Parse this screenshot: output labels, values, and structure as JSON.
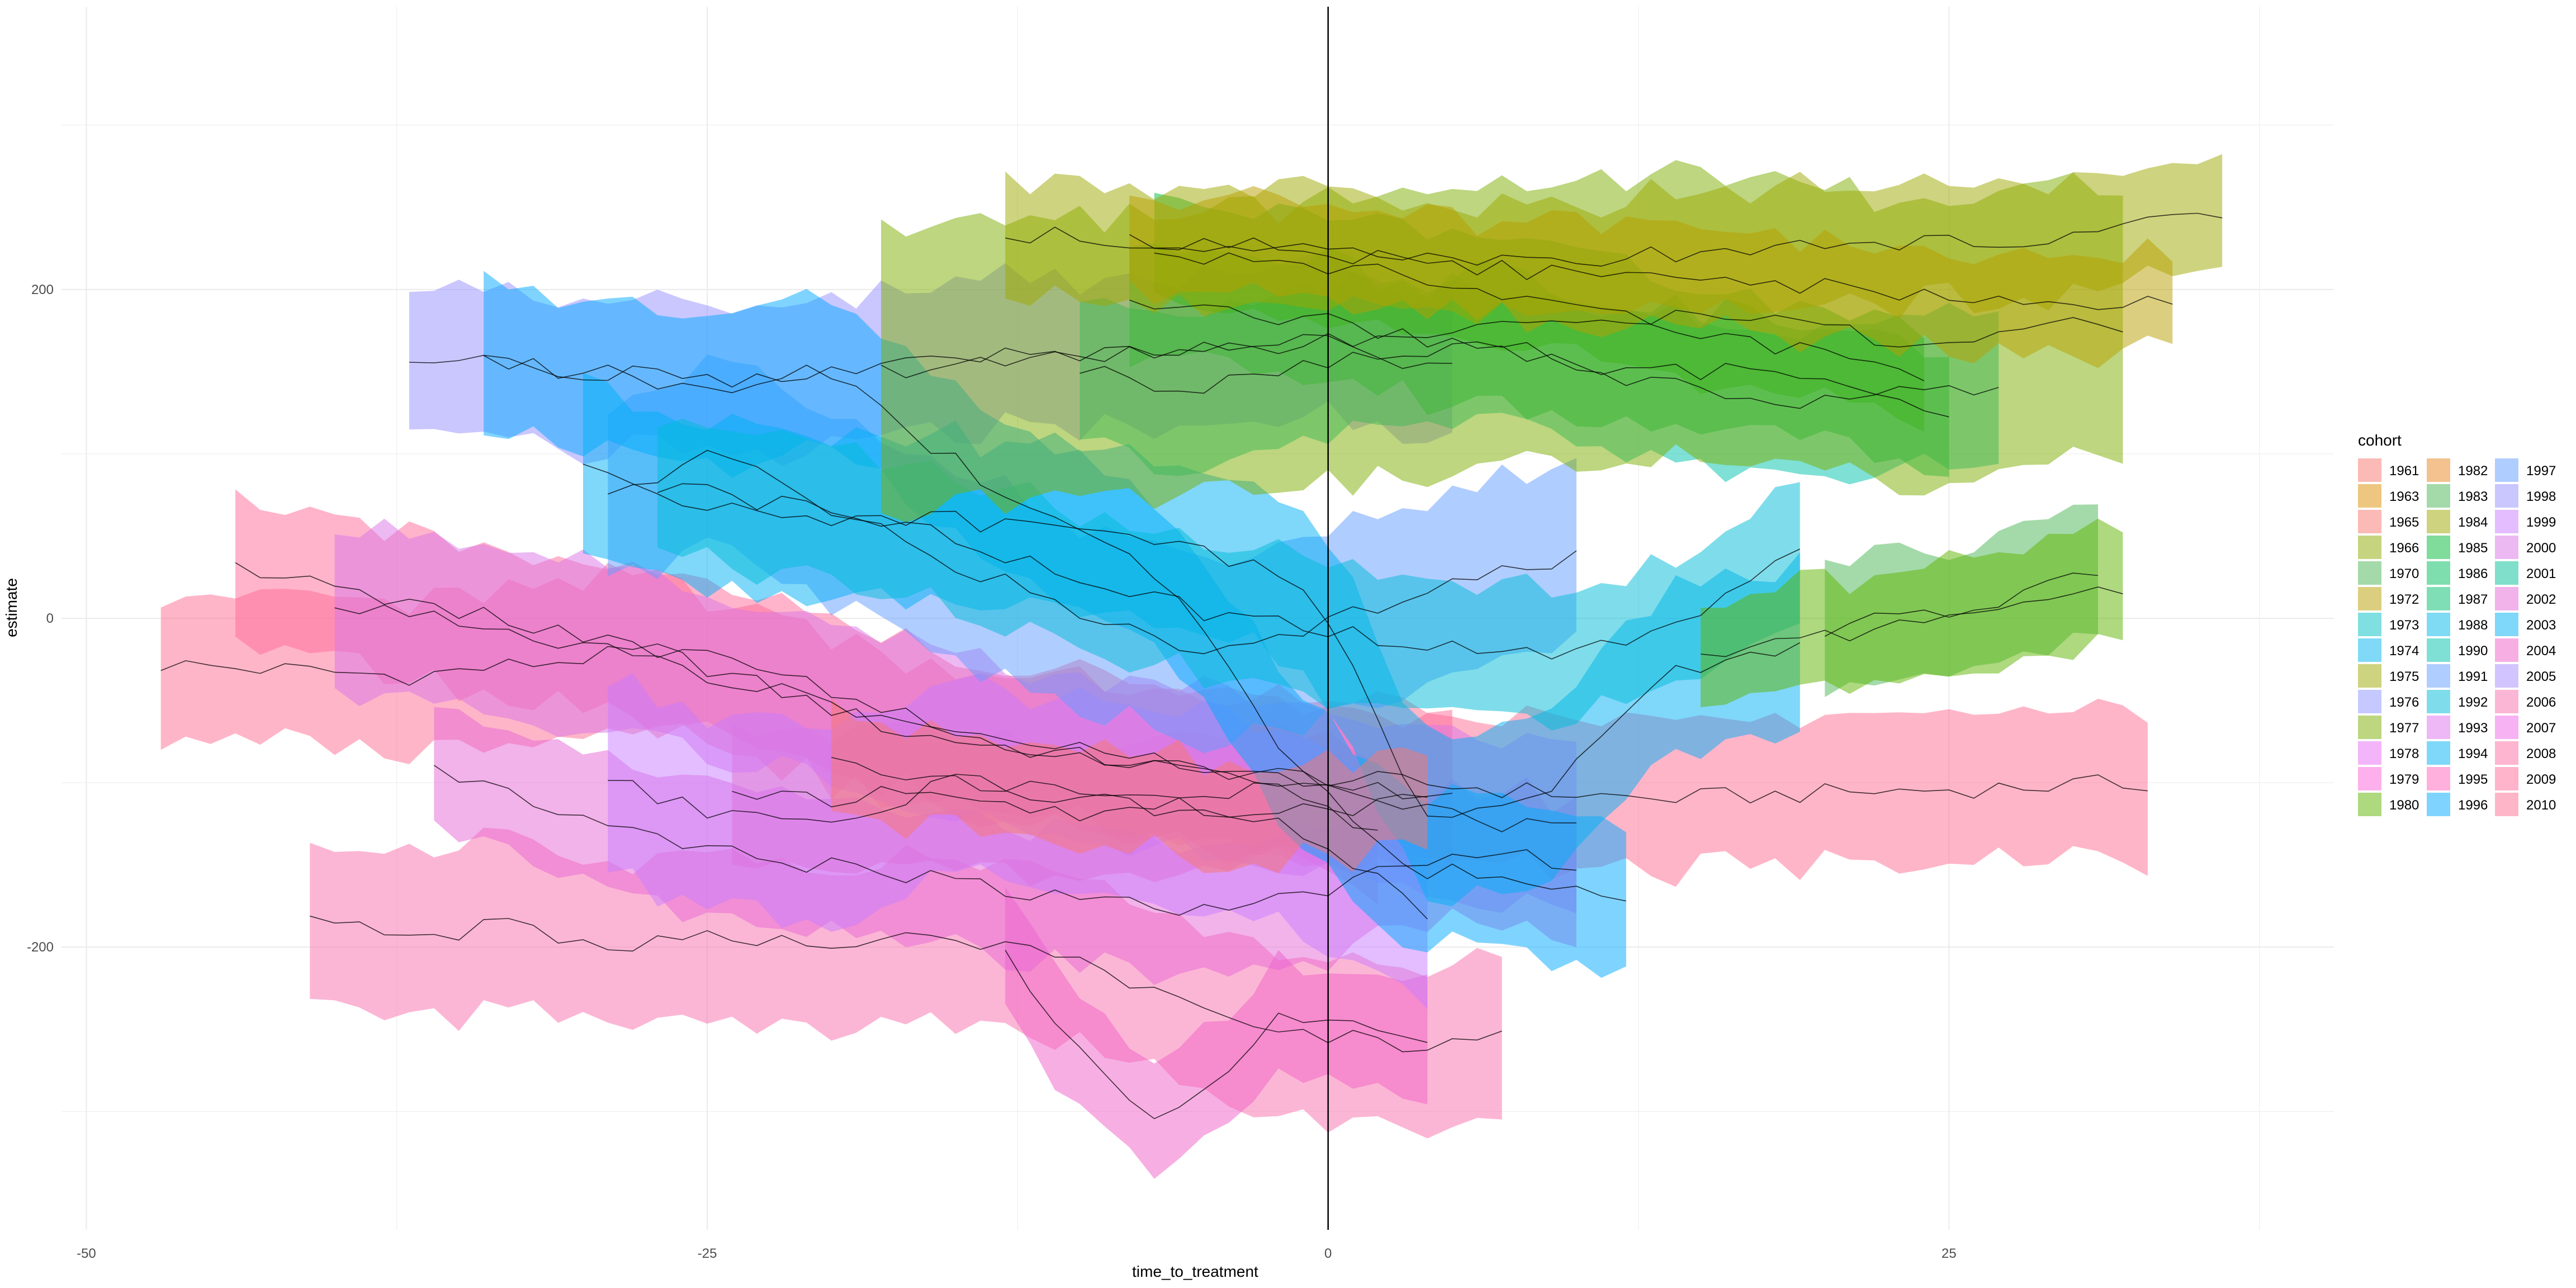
{
  "chart_data": {
    "type": "area",
    "title": "",
    "xlabel": "time_to_treatment",
    "ylabel": "estimate",
    "xlim": [
      -51,
      40.5
    ],
    "ylim": [
      -372,
      372
    ],
    "x_ticks": [
      -50,
      -25,
      0,
      25
    ],
    "y_ticks": [
      -200,
      0,
      200
    ],
    "x_tick_labels": [
      "-50",
      "-25",
      "0",
      "25"
    ],
    "y_tick_labels": [
      "-200",
      "0",
      "200"
    ],
    "reference_line_x": 0,
    "grid": true,
    "ribbon_opacity": 0.5,
    "legend": {
      "title": "cohort",
      "placement": "right",
      "columns": [
        [
          "1961",
          "1963",
          "1965",
          "1966",
          "1970",
          "1972",
          "1973",
          "1974",
          "1975",
          "1976",
          "1977",
          "1978",
          "1979",
          "1980"
        ],
        [
          "1982",
          "1983",
          "1984",
          "1985",
          "1986",
          "1987",
          "1988",
          "1990",
          "1991",
          "1992",
          "1993",
          "1994",
          "1995",
          "1996"
        ],
        [
          "1997",
          "1998",
          "1999",
          "2000",
          "2001",
          "2002",
          "2003",
          "2004",
          "2005",
          "2006",
          "2007",
          "2008",
          "2009",
          "2010"
        ]
      ]
    },
    "series": [
      {
        "name": "2010",
        "color": "#FF6C91",
        "x": [
          -47,
          33
        ],
        "estimate": [
          -28,
          -35,
          -20,
          -70,
          -90,
          -100,
          -110,
          -105,
          -100
        ],
        "halfwidth": 45
      },
      {
        "name": "2009",
        "color": "#FF6A98",
        "x": [
          -44,
          5
        ],
        "estimate": [
          28,
          10,
          -10,
          -30,
          -60,
          -85,
          -95,
          -110
        ],
        "halfwidth": 45
      },
      {
        "name": "2008",
        "color": "#FE6C9F",
        "x": [
          -24,
          2
        ],
        "estimate": [
          -110,
          -110,
          -105,
          -120,
          -110,
          -100,
          -130
        ],
        "halfwidth": 40
      },
      {
        "name": "2006",
        "color": "#FA6DAC",
        "x": [
          -41,
          7
        ],
        "estimate": [
          -178,
          -195,
          -185,
          -200,
          -195,
          -200,
          -190,
          -200,
          -215,
          -240,
          -250,
          -260,
          -255
        ],
        "halfwidth": 50
      },
      {
        "name": "2004",
        "color": "#F060C7",
        "x": [
          -13,
          4
        ],
        "estimate": [
          -200,
          -260,
          -300,
          -290,
          -240,
          -250,
          -260
        ],
        "halfwidth": 35
      },
      {
        "name": "2002",
        "color": "#E565D5",
        "x": [
          -36,
          10
        ],
        "estimate": [
          -90,
          -120,
          -140,
          -150,
          -160,
          -170,
          -180,
          -165,
          -140,
          -150
        ],
        "halfwidth": 40
      },
      {
        "name": "2000",
        "color": "#D973E7",
        "x": [
          -40,
          10
        ],
        "estimate": [
          10,
          0,
          -20,
          -40,
          -60,
          -80,
          -90,
          -100,
          -120,
          -130
        ],
        "halfwidth": 50
      },
      {
        "name": "1999",
        "color": "#C77CFF",
        "x": [
          -29,
          4
        ],
        "estimate": [
          -100,
          -120,
          -120,
          -100,
          -110,
          -120,
          -130,
          -180
        ],
        "halfwidth": 60
      },
      {
        "name": "1998",
        "color": "#9590FF",
        "x": [
          -37,
          5
        ],
        "estimate": [
          160,
          150,
          145,
          150,
          160,
          165,
          170,
          150
        ],
        "halfwidth": 45
      },
      {
        "name": "1997",
        "color": "#619CFF",
        "x": [
          -29,
          10
        ],
        "estimate": [
          80,
          100,
          60,
          30,
          0,
          -20,
          0,
          20,
          40
        ],
        "halfwidth": 55
      },
      {
        "name": "1996",
        "color": "#00A9FF",
        "x": [
          -34,
          12
        ],
        "estimate": [
          155,
          150,
          140,
          150,
          100,
          60,
          20,
          -80,
          -150,
          -160,
          -170
        ],
        "halfwidth": 45
      },
      {
        "name": "1994",
        "color": "#00B0F6",
        "x": [
          -30,
          19
        ],
        "estimate": [
          90,
          70,
          60,
          60,
          50,
          40,
          20,
          -130,
          -100,
          -30,
          -20
        ],
        "halfwidth": 50
      },
      {
        "name": "1992",
        "color": "#00BCD8",
        "x": [
          -27,
          19
        ],
        "estimate": [
          80,
          70,
          60,
          40,
          20,
          0,
          -10,
          -20,
          -20,
          0,
          40
        ],
        "halfwidth": 40
      },
      {
        "name": "1990",
        "color": "#00C1AB",
        "x": [
          -10,
          27
        ],
        "estimate": [
          150,
          140,
          150,
          160,
          170,
          150,
          140,
          130,
          140,
          140
        ],
        "halfwidth": 45
      },
      {
        "name": "1987",
        "color": "#00BE6E",
        "x": [
          -8,
          25
        ],
        "estimate": [
          190,
          185,
          180,
          170,
          160,
          150,
          150,
          140,
          120
        ],
        "halfwidth": 35
      },
      {
        "name": "1985",
        "color": "#00BA38",
        "x": [
          -7,
          24
        ],
        "estimate": [
          220,
          215,
          210,
          200,
          190,
          175,
          160,
          150
        ],
        "halfwidth": 30
      },
      {
        "name": "1983",
        "color": "#49B653",
        "x": [
          20,
          31
        ],
        "estimate": [
          -10,
          0,
          5,
          10,
          20,
          25
        ],
        "halfwidth": 40
      },
      {
        "name": "1980",
        "color": "#5EB300",
        "x": [
          15,
          32
        ],
        "estimate": [
          -20,
          -15,
          -10,
          0,
          10,
          20
        ],
        "halfwidth": 35
      },
      {
        "name": "1977",
        "color": "#7CAE00",
        "x": [
          -18,
          32
        ],
        "estimate": [
          150,
          155,
          160,
          165,
          170,
          175,
          180,
          185,
          170,
          175,
          180
        ],
        "halfwidth": 85
      },
      {
        "name": "1975",
        "color": "#9EA700",
        "x": [
          -13,
          36
        ],
        "estimate": [
          235,
          230,
          225,
          220,
          215,
          220,
          225,
          228,
          230,
          235,
          245
        ],
        "halfwidth": 35
      },
      {
        "name": "1972",
        "color": "#B79F00",
        "x": [
          -8,
          34
        ],
        "estimate": [
          230,
          225,
          215,
          210,
          205,
          200,
          195,
          190
        ],
        "halfwidth": 30
      },
      {
        "name": "1965",
        "color": "#F8766D",
        "x": [
          -20,
          4
        ],
        "estimate": [
          -90,
          -100,
          -110,
          -120,
          -110
        ],
        "halfwidth": 30
      }
    ]
  }
}
